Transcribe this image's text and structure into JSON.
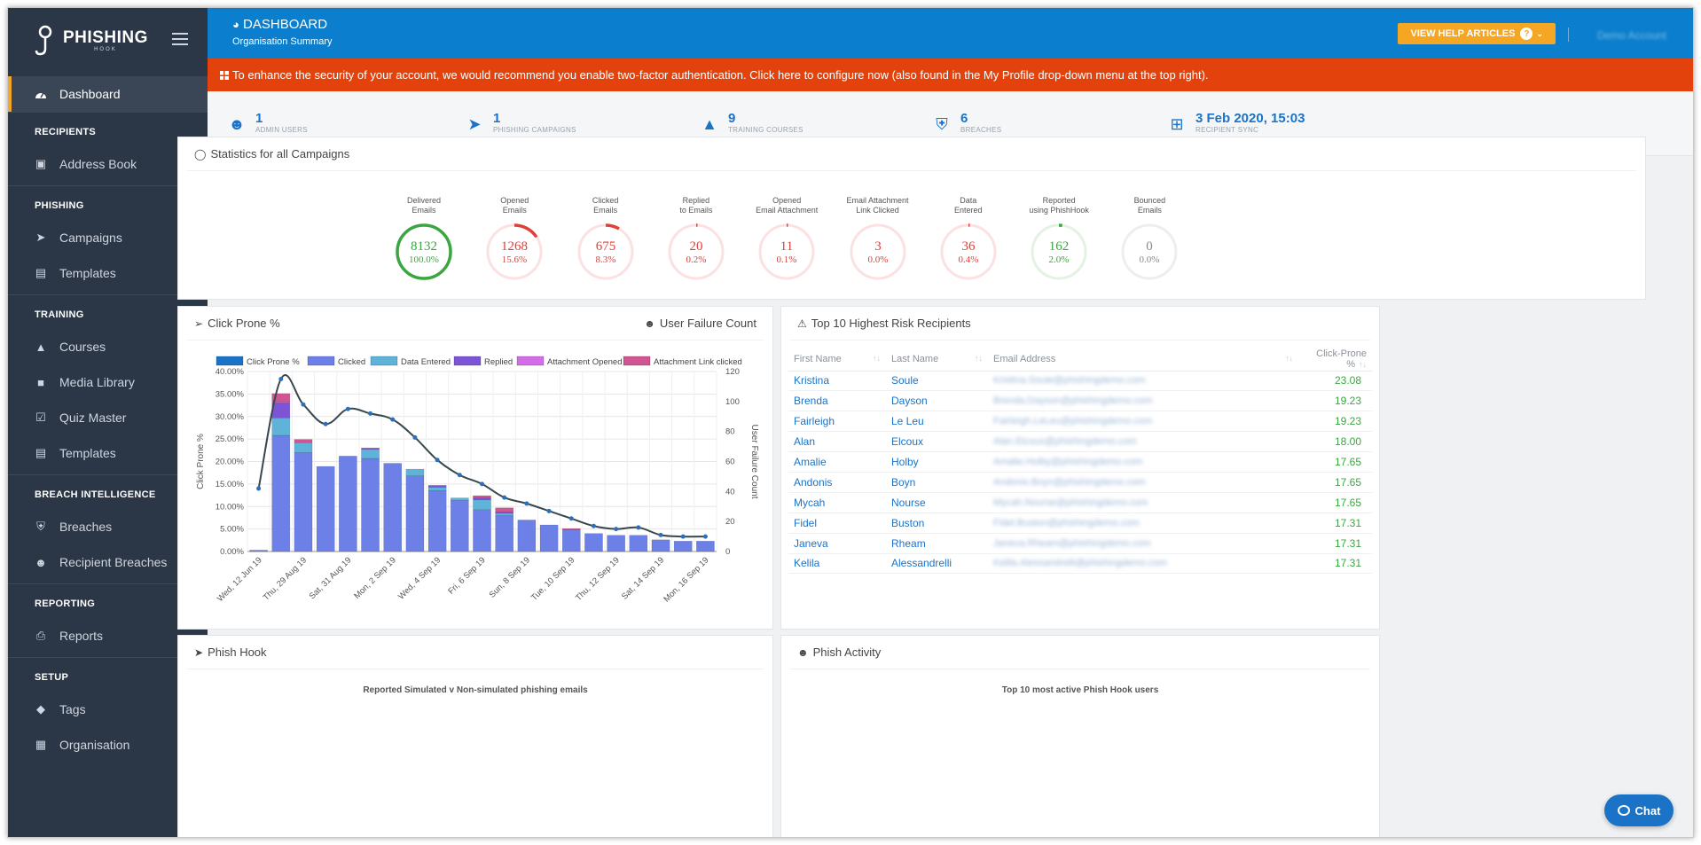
{
  "app": {
    "logo_text": "PHISHING",
    "logo_sub": "HOOK"
  },
  "sidebar": {
    "active": {
      "label": "Dashboard",
      "icon": "dashboard-icon"
    },
    "sections": [
      {
        "title": "RECIPIENTS",
        "items": [
          {
            "label": "Address Book",
            "icon": "address-book-icon",
            "caret": true
          }
        ]
      },
      {
        "title": "PHISHING",
        "items": [
          {
            "label": "Campaigns",
            "icon": "paper-plane-icon",
            "caret": false
          },
          {
            "label": "Templates",
            "icon": "file-icon",
            "caret": true
          }
        ]
      },
      {
        "title": "TRAINING",
        "items": [
          {
            "label": "Courses",
            "icon": "graduation-cap-icon",
            "caret": false
          },
          {
            "label": "Media Library",
            "icon": "video-icon",
            "caret": false
          },
          {
            "label": "Quiz Master",
            "icon": "quiz-icon",
            "caret": false
          },
          {
            "label": "Templates",
            "icon": "file-icon",
            "caret": true
          }
        ]
      },
      {
        "title": "BREACH INTELLIGENCE",
        "items": [
          {
            "label": "Breaches",
            "icon": "shield-icon",
            "caret": false
          },
          {
            "label": "Recipient Breaches",
            "icon": "user-breach-icon",
            "caret": false
          }
        ]
      },
      {
        "title": "REPORTING",
        "items": [
          {
            "label": "Reports",
            "icon": "printer-icon",
            "caret": false
          }
        ]
      },
      {
        "title": "SETUP",
        "items": [
          {
            "label": "Tags",
            "icon": "tags-icon",
            "caret": false
          },
          {
            "label": "Organisation",
            "icon": "building-icon",
            "caret": true
          }
        ]
      }
    ]
  },
  "header": {
    "title": "DASHBOARD",
    "subtitle": "Organisation Summary",
    "help_button": "VIEW HELP ARTICLES",
    "account": "Demo Account"
  },
  "banner": {
    "text": "To enhance the security of your account, we would recommend you enable two-factor authentication.  Click here to configure now (also found in the My Profile drop-down menu at the top right)."
  },
  "stats": [
    {
      "value": "1",
      "label": "ADMIN USERS",
      "icon": "admin-user-icon"
    },
    {
      "value": "1",
      "label": "PHISHING CAMPAIGNS",
      "icon": "paper-plane-icon"
    },
    {
      "value": "9",
      "label": "TRAINING COURSES",
      "icon": "graduation-cap-icon"
    },
    {
      "value": "6",
      "label": "BREACHES",
      "icon": "shield-icon"
    },
    {
      "value": "3 Feb 2020, 15:03",
      "label": "RECIPIENT SYNC",
      "icon": "windows-icon"
    }
  ],
  "campaign_stats": {
    "title": "Statistics for all Campaigns",
    "items": [
      {
        "label1": "Delivered",
        "label2": "Emails",
        "value": "8132",
        "percent": "100.0%",
        "fraction": 1.0,
        "color": "#3aa640"
      },
      {
        "label1": "Opened",
        "label2": "Emails",
        "value": "1268",
        "percent": "15.6%",
        "fraction": 0.156,
        "color": "#e0403a"
      },
      {
        "label1": "Clicked",
        "label2": "Emails",
        "value": "675",
        "percent": "8.3%",
        "fraction": 0.083,
        "color": "#e0403a"
      },
      {
        "label1": "Replied",
        "label2": "to Emails",
        "value": "20",
        "percent": "0.2%",
        "fraction": 0.002,
        "color": "#e0403a"
      },
      {
        "label1": "Opened",
        "label2": "Email Attachment",
        "value": "11",
        "percent": "0.1%",
        "fraction": 0.001,
        "color": "#e0403a"
      },
      {
        "label1": "Email Attachment",
        "label2": "Link Clicked",
        "value": "3",
        "percent": "0.0%",
        "fraction": 0.0,
        "color": "#e0403a"
      },
      {
        "label1": "Data",
        "label2": "Entered",
        "value": "36",
        "percent": "0.4%",
        "fraction": 0.004,
        "color": "#e0403a"
      },
      {
        "label1": "Reported",
        "label2": "using PhishHook",
        "value": "162",
        "percent": "2.0%",
        "fraction": 0.02,
        "color": "#3aa640"
      },
      {
        "label1": "Bounced",
        "label2": "Emails",
        "value": "0",
        "percent": "0.0%",
        "fraction": 0.0,
        "color": "#999999"
      }
    ]
  },
  "click_prone": {
    "title": "Click Prone %",
    "toggle_label": "User Failure Count"
  },
  "chart_data": {
    "type": "bar",
    "categories": [
      "Wed, 12 Jun 19",
      "Thu, 29 Aug 19",
      "Fri, 30 Aug 19",
      "Sat, 31 Aug 19",
      "Sun, 1 Sep 19",
      "Mon, 2 Sep 19",
      "Tue, 3 Sep 19",
      "Wed, 4 Sep 19",
      "Thu, 5 Sep 19",
      "Fri, 6 Sep 19",
      "Sat, 7 Sep 19",
      "Sun, 8 Sep 19",
      "Mon, 9 Sep 19",
      "Tue, 10 Sep 19",
      "Wed, 11 Sep 19",
      "Thu, 12 Sep 19",
      "Fri, 13 Sep 19",
      "Sat, 14 Sep 19",
      "Sun, 15 Sep 19",
      "Mon, 16 Sep 19",
      "Tue, 17 Sep 19"
    ],
    "tick_labels": [
      "Wed, 12 Jun 19",
      "Thu, 29 Aug 19",
      "Sat, 31 Aug 19",
      "Mon, 2 Sep 19",
      "Wed, 4 Sep 19",
      "Fri, 6 Sep 19",
      "Sun, 8 Sep 19",
      "Tue, 10 Sep 19",
      "Thu, 12 Sep 19",
      "Sat, 14 Sep 19",
      "Mon, 16 Sep 19"
    ],
    "series": [
      {
        "name": "Clicked",
        "color": "#6c80e8",
        "values": [
          0.3,
          25.8,
          22.0,
          18.9,
          21.2,
          20.7,
          19.6,
          16.8,
          13.5,
          11.4,
          9.3,
          8.0,
          7.0,
          5.9,
          4.8,
          4.0,
          3.6,
          3.6,
          2.6,
          2.3,
          2.3
        ]
      },
      {
        "name": "Data Entered",
        "color": "#5fb3d9",
        "values": [
          0,
          3.9,
          2.2,
          0,
          0,
          2.0,
          0,
          1.5,
          0.8,
          0.5,
          2.2,
          0.5,
          0,
          0,
          0,
          0,
          0,
          0,
          0,
          0,
          0
        ]
      },
      {
        "name": "Replied",
        "color": "#7c55d6",
        "values": [
          0,
          3.3,
          0,
          0,
          0,
          0.3,
          0,
          0,
          0.4,
          0,
          0.4,
          0.3,
          0,
          0,
          0,
          0,
          0,
          0,
          0,
          0,
          0
        ]
      },
      {
        "name": "Attachment Opened",
        "color": "#d36de8",
        "values": [
          0,
          0.3,
          0,
          0,
          0,
          0,
          0,
          0,
          0,
          0,
          0,
          0,
          0,
          0,
          0,
          0,
          0,
          0,
          0,
          0,
          0
        ]
      },
      {
        "name": "Attachment Link clicked",
        "color": "#cf5593",
        "values": [
          0,
          1.8,
          0.7,
          0,
          0,
          0,
          0,
          0,
          0,
          0,
          0.5,
          0.9,
          0,
          0,
          0.3,
          0,
          0,
          0,
          0,
          0,
          0
        ]
      }
    ],
    "line_series": {
      "name": "Click Prone %",
      "color": "#37474f",
      "values": [
        42,
        115,
        98,
        85,
        95,
        92,
        88,
        76,
        61,
        51,
        45,
        36,
        32,
        27,
        22,
        17,
        15,
        16,
        11,
        10,
        10
      ]
    },
    "legend_line_color": "#1a73c7",
    "ylabel": "Click Prone %",
    "y2label": "User Failure Count",
    "ylim": [
      0,
      40
    ],
    "y2lim": [
      0,
      120
    ],
    "yticks": [
      "0.00%",
      "5.00%",
      "10.00%",
      "15.00%",
      "20.00%",
      "25.00%",
      "30.00%",
      "35.00%",
      "40.00%"
    ],
    "y2ticks": [
      "0",
      "20",
      "40",
      "60",
      "80",
      "100",
      "120"
    ],
    "grid": true,
    "legend_placement": "top"
  },
  "risk_table": {
    "title": "Top 10 Highest Risk Recipients",
    "columns": [
      "First Name",
      "Last Name",
      "Email Address",
      "Click-Prone %"
    ],
    "rows": [
      {
        "first": "Kristina",
        "last": "Soule",
        "email": "Kristina.Soule@phishingdemo.com",
        "cp": "23.08"
      },
      {
        "first": "Brenda",
        "last": "Dayson",
        "email": "Brenda.Dayson@phishingdemo.com",
        "cp": "19.23"
      },
      {
        "first": "Fairleigh",
        "last": "Le Leu",
        "email": "Fairleigh.LeLeu@phishingdemo.com",
        "cp": "19.23"
      },
      {
        "first": "Alan",
        "last": "Elcoux",
        "email": "Alan.Elcoux@phishingdemo.com",
        "cp": "18.00"
      },
      {
        "first": "Amalie",
        "last": "Holby",
        "email": "Amalie.Holby@phishingdemo.com",
        "cp": "17.65"
      },
      {
        "first": "Andonis",
        "last": "Boyn",
        "email": "Andonis.Boyn@phishingdemo.com",
        "cp": "17.65"
      },
      {
        "first": "Mycah",
        "last": "Nourse",
        "email": "Mycah.Nourse@phishingdemo.com",
        "cp": "17.65"
      },
      {
        "first": "Fidel",
        "last": "Buston",
        "email": "Fidel.Buston@phishingdemo.com",
        "cp": "17.31"
      },
      {
        "first": "Janeva",
        "last": "Rheam",
        "email": "Janeva.Rheam@phishingdemo.com",
        "cp": "17.31"
      },
      {
        "first": "Kelila",
        "last": "Alessandrelli",
        "email": "Kelila.Alessandrelli@phishingdemo.com",
        "cp": "17.31"
      }
    ]
  },
  "phish_hook": {
    "title": "Phish Hook",
    "subtitle": "Reported Simulated v Non-simulated phishing emails"
  },
  "phish_activity": {
    "title": "Phish Activity",
    "subtitle": "Top 10 most active Phish Hook users"
  },
  "chat": {
    "label": "Chat"
  }
}
